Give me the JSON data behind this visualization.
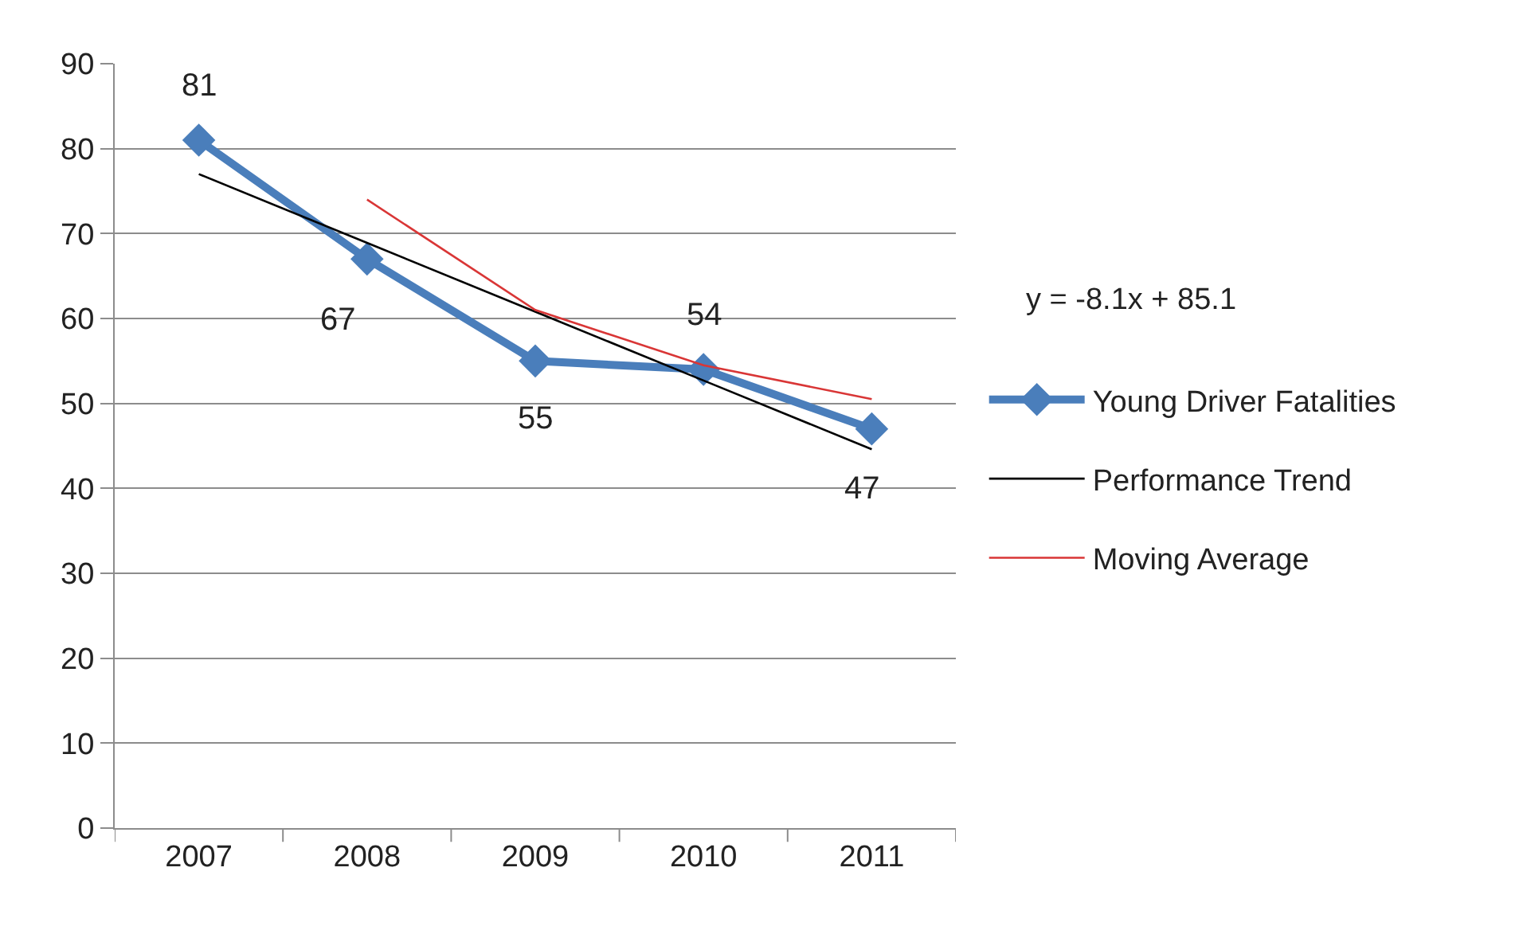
{
  "chart_data": {
    "type": "line",
    "categories": [
      "2007",
      "2008",
      "2009",
      "2010",
      "2011"
    ],
    "ylim": [
      0,
      90
    ],
    "yticks": [
      0,
      10,
      20,
      30,
      40,
      50,
      60,
      70,
      80,
      90
    ],
    "grid": "y",
    "legend": "right",
    "annotations": [
      "y = -8.1x + 85.1"
    ],
    "series": [
      {
        "name": "Young Driver Fatalities",
        "color": "#4a7ebb",
        "values": [
          81,
          67,
          55,
          54,
          47
        ],
        "value_labels": [
          "81",
          "67",
          "55",
          "54",
          "47"
        ],
        "marker": "diamond"
      },
      {
        "name": "Performance Trend",
        "color": "#000000",
        "values": [
          77,
          68.9,
          60.8,
          52.7,
          44.6
        ],
        "marker": "none"
      },
      {
        "name": "Moving Average",
        "color": "#d93636",
        "values": [
          null,
          74,
          61,
          54.5,
          50.5
        ],
        "marker": "none"
      }
    ]
  }
}
